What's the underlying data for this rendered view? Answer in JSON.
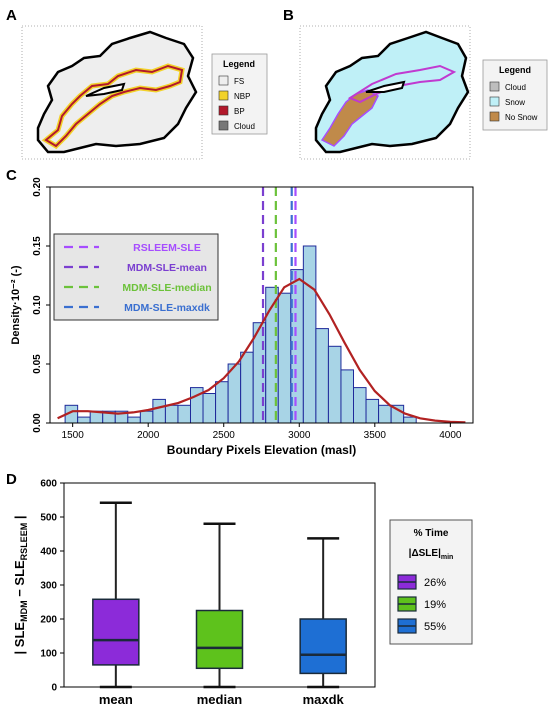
{
  "panels": {
    "a": {
      "label": "A",
      "legend_title": "Legend",
      "legend": [
        {
          "label": "FS",
          "color": "#eeeeee"
        },
        {
          "label": "NBP",
          "color": "#f2d22a"
        },
        {
          "label": "BP",
          "color": "#b2182b"
        },
        {
          "label": "Cloud",
          "color": "#777777"
        }
      ]
    },
    "b": {
      "label": "B",
      "legend_title": "Legend",
      "legend": [
        {
          "label": "Cloud",
          "color": "#bdbdbd"
        },
        {
          "label": "Snow",
          "color": "#bff0f7"
        },
        {
          "label": "No Snow",
          "color": "#c08a4a"
        }
      ]
    },
    "c": {
      "label": "C"
    },
    "d": {
      "label": "D"
    }
  },
  "chart_data": [
    {
      "type": "bar",
      "panel": "C",
      "xlabel": "Boundary Pixels Elevation (masl)",
      "ylabel": "Density·10⁻² (-)",
      "xlim": [
        1350,
        4150
      ],
      "ylim": [
        0,
        0.2
      ],
      "xticks": [
        1500,
        2000,
        2500,
        3000,
        3500,
        4000
      ],
      "yticks": [
        0.0,
        0.05,
        0.1,
        0.15,
        0.2
      ],
      "ytick_labels": [
        "0.00",
        "0.05",
        "0.10",
        "0.15",
        "0.20"
      ],
      "bin_width": 83,
      "bins_left": [
        1450,
        1533,
        1616,
        1699,
        1782,
        1865,
        1948,
        2031,
        2114,
        2197,
        2280,
        2363,
        2446,
        2529,
        2612,
        2695,
        2778,
        2861,
        2944,
        3027,
        3110,
        3193,
        3276,
        3359,
        3442,
        3525,
        3608,
        3691
      ],
      "values": [
        0.015,
        0.005,
        0.01,
        0.01,
        0.01,
        0.005,
        0.01,
        0.02,
        0.015,
        0.015,
        0.03,
        0.025,
        0.035,
        0.05,
        0.06,
        0.085,
        0.115,
        0.11,
        0.13,
        0.15,
        0.08,
        0.065,
        0.045,
        0.03,
        0.02,
        0.015,
        0.015,
        0.005
      ],
      "density_curve": {
        "x": [
          1400,
          1500,
          1600,
          1700,
          1800,
          1900,
          2000,
          2100,
          2200,
          2300,
          2400,
          2500,
          2600,
          2700,
          2800,
          2900,
          3000,
          3100,
          3200,
          3300,
          3400,
          3500,
          3600,
          3700,
          3800,
          3900,
          4000,
          4100
        ],
        "y": [
          0.004,
          0.01,
          0.01,
          0.009,
          0.008,
          0.009,
          0.011,
          0.014,
          0.017,
          0.022,
          0.028,
          0.038,
          0.052,
          0.072,
          0.095,
          0.115,
          0.122,
          0.113,
          0.092,
          0.068,
          0.045,
          0.027,
          0.015,
          0.008,
          0.004,
          0.002,
          0.001,
          0.0005
        ],
        "color": "#b22222"
      },
      "vlines": [
        {
          "name": "RSLEEM-SLE",
          "x": 2975,
          "color": "#a64dff"
        },
        {
          "name": "MDM-SLE-mean",
          "x": 2760,
          "color": "#7b3fd0"
        },
        {
          "name": "MDM-SLE-median",
          "x": 2845,
          "color": "#6cc23a"
        },
        {
          "name": "MDM-SLE-maxdk",
          "x": 2950,
          "color": "#3a6fd0"
        }
      ],
      "bar_fill": "#a8d4e6",
      "bar_stroke": "#1f2a9a",
      "legend_position": "upper-left"
    },
    {
      "type": "box",
      "panel": "D",
      "ylabel": "| SLE_MDM − SLE_RSLEEM |",
      "ylim": [
        0,
        600
      ],
      "yticks": [
        0,
        100,
        200,
        300,
        400,
        500,
        600
      ],
      "categories": [
        "mean",
        "median",
        "maxdk"
      ],
      "boxes": [
        {
          "category": "mean",
          "min": 0,
          "q1": 65,
          "median": 138,
          "q3": 258,
          "max": 542,
          "color": "#8c2bd9"
        },
        {
          "category": "median",
          "min": 0,
          "q1": 55,
          "median": 115,
          "q3": 225,
          "max": 480,
          "color": "#5ec21c"
        },
        {
          "category": "maxdk",
          "min": 0,
          "q1": 40,
          "median": 95,
          "q3": 200,
          "max": 437,
          "color": "#1e6fd4"
        }
      ],
      "legend_title": "% Time",
      "legend_subtitle": "|ΔSLE|",
      "legend_subtitle_sub": "min",
      "legend": [
        {
          "label": "26%",
          "color": "#8c2bd9"
        },
        {
          "label": "19%",
          "color": "#5ec21c"
        },
        {
          "label": "55%",
          "color": "#1e6fd4"
        }
      ]
    }
  ]
}
